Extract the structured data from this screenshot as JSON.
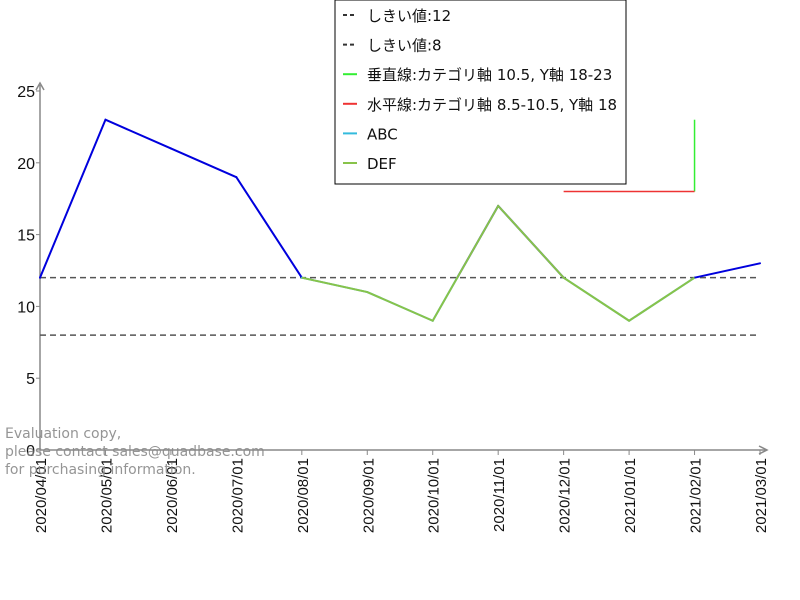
{
  "chart_data": {
    "type": "line",
    "title": "",
    "xlabel": "",
    "ylabel": "",
    "categories": [
      "2020/04/01",
      "2020/05/01",
      "2020/06/01",
      "2020/07/01",
      "2020/08/01",
      "2020/09/01",
      "2020/10/01",
      "2020/11/01",
      "2020/12/01",
      "2021/01/01",
      "2021/02/01",
      "2021/03/01"
    ],
    "values": [
      12,
      23,
      21,
      19,
      12,
      11,
      9,
      17,
      12,
      9,
      12,
      13
    ],
    "ylim": [
      0,
      25
    ],
    "yticks": [
      0,
      5,
      10,
      15,
      20,
      25
    ],
    "threshold_colors": {
      "above_12": "#0000dd",
      "between_8_and_12": "#33bbdd",
      "below_8": "#ffcc00",
      "def": "#88c34a"
    },
    "series": [
      {
        "name": "ABC",
        "color": "#33bbdd"
      },
      {
        "name": "DEF",
        "color": "#88c34a",
        "category_range": [
          4,
          10
        ]
      }
    ],
    "threshold_lines": [
      {
        "label": "しきい値:12",
        "y": 12,
        "color": "#555555"
      },
      {
        "label": "しきい値:8",
        "y": 8,
        "color": "#555555"
      }
    ],
    "vertical_line": {
      "label": "垂直線:カテゴリ軸 10.5, Y軸 18-23",
      "x": 10.5,
      "y_from": 18,
      "y_to": 23,
      "color": "#33ee33"
    },
    "horizontal_line": {
      "label": "水平線:カテゴリ軸 8.5-10.5, Y軸 18",
      "x_from": 8.5,
      "x_to": 10.5,
      "y": 18,
      "color": "#ee3333"
    },
    "legend_entries": [
      {
        "label": "しきい値:12",
        "style": "dashed",
        "color": "#333333"
      },
      {
        "label": "しきい値:8",
        "style": "dashed",
        "color": "#333333"
      },
      {
        "label": "垂直線:カテゴリ軸 10.5, Y軸 18-23",
        "style": "solid",
        "color": "#33ee33"
      },
      {
        "label": "水平線:カテゴリ軸 8.5-10.5, Y軸 18",
        "style": "solid",
        "color": "#ee3333"
      },
      {
        "label": "ABC",
        "style": "solid",
        "color": "#33bbdd"
      },
      {
        "label": "DEF",
        "style": "solid",
        "color": "#88c34a"
      }
    ],
    "legend_position": "top-center",
    "grid": false
  },
  "watermark": [
    "Evaluation copy,",
    "please contact sales@quadbase.com",
    "for purchasing information."
  ]
}
